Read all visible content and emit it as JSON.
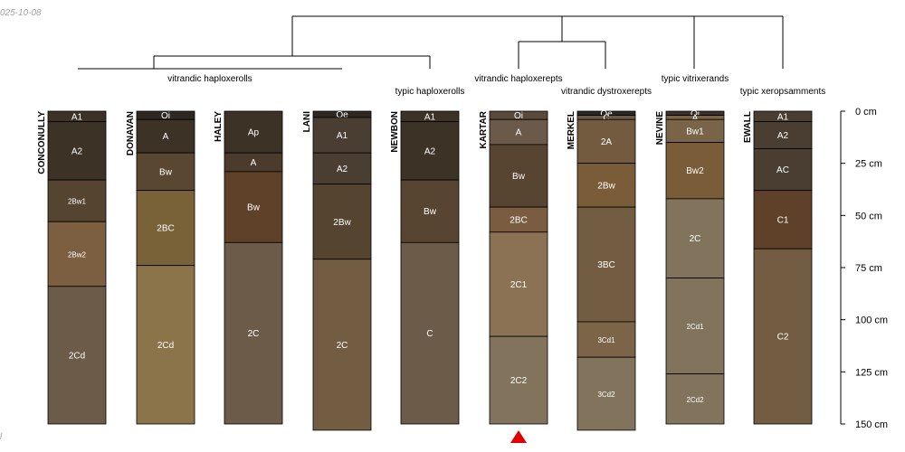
{
  "header": {
    "date_text": "025-10-08",
    "corner_mark": "l"
  },
  "colors": {
    "line": "#000000",
    "marker": "#e00000",
    "label_light": "#ffffff"
  },
  "depth_axis": {
    "max_depth": 150,
    "ticks": [
      {
        "value": 0,
        "label": "0 cm"
      },
      {
        "value": 25,
        "label": "25 cm"
      },
      {
        "value": 50,
        "label": "50 cm"
      },
      {
        "value": 75,
        "label": "75 cm"
      },
      {
        "value": 100,
        "label": "100 cm"
      },
      {
        "value": 125,
        "label": "125 cm"
      },
      {
        "value": 150,
        "label": "150 cm"
      }
    ]
  },
  "taxa_labels": [
    "vitrandic haploxerolls",
    "typic haploxerolls",
    "vitrandic haploxerepts",
    "vitrandic dystroxerepts",
    "typic vitrixerands",
    "typic xeropsamments"
  ],
  "marker": {
    "profile": "KARTAR",
    "shape": "triangle"
  },
  "profiles": [
    {
      "name": "CONCONULLY",
      "horizons": [
        {
          "name": "A1",
          "top": 0,
          "bottom": 5,
          "color": "#3d3226"
        },
        {
          "name": "A2",
          "top": 5,
          "bottom": 33,
          "color": "#3d3226"
        },
        {
          "name": "2Bw1",
          "top": 33,
          "bottom": 53,
          "color": "#55442f"
        },
        {
          "name": "2Bw2",
          "top": 53,
          "bottom": 84,
          "color": "#7b5f40"
        },
        {
          "name": "2Cd",
          "top": 84,
          "bottom": 150,
          "color": "#6b5b48"
        }
      ]
    },
    {
      "name": "DONAVAN",
      "horizons": [
        {
          "name": "Oi",
          "top": 0,
          "bottom": 4,
          "color": "#2e2820"
        },
        {
          "name": "A",
          "top": 4,
          "bottom": 20,
          "color": "#3d3226"
        },
        {
          "name": "Bw",
          "top": 20,
          "bottom": 38,
          "color": "#5a4731"
        },
        {
          "name": "2BC",
          "top": 38,
          "bottom": 74,
          "color": "#7a6238"
        },
        {
          "name": "2Cd",
          "top": 74,
          "bottom": 150,
          "color": "#8b7449"
        }
      ]
    },
    {
      "name": "HALEY",
      "horizons": [
        {
          "name": "Ap",
          "top": 0,
          "bottom": 20,
          "color": "#3d3226"
        },
        {
          "name": "A",
          "top": 20,
          "bottom": 29,
          "color": "#4a3b2c"
        },
        {
          "name": "Bw",
          "top": 29,
          "bottom": 63,
          "color": "#5e4128"
        },
        {
          "name": "2C",
          "top": 63,
          "bottom": 150,
          "color": "#6b5b48"
        }
      ]
    },
    {
      "name": "LANI",
      "horizons": [
        {
          "name": "Oe",
          "top": 0,
          "bottom": 3,
          "color": "#2e2820"
        },
        {
          "name": "A1",
          "top": 3,
          "bottom": 20,
          "color": "#4a3e32"
        },
        {
          "name": "A2",
          "top": 20,
          "bottom": 35,
          "color": "#4a3e32"
        },
        {
          "name": "2Bw",
          "top": 35,
          "bottom": 71,
          "color": "#554530"
        },
        {
          "name": "2C",
          "top": 71,
          "bottom": 153,
          "color": "#735d42"
        }
      ]
    },
    {
      "name": "NEWBON",
      "horizons": [
        {
          "name": "A1",
          "top": 0,
          "bottom": 5,
          "color": "#3d3226"
        },
        {
          "name": "A2",
          "top": 5,
          "bottom": 33,
          "color": "#3d3226"
        },
        {
          "name": "Bw",
          "top": 33,
          "bottom": 63,
          "color": "#574532"
        },
        {
          "name": "C",
          "top": 63,
          "bottom": 150,
          "color": "#6b5b48"
        }
      ]
    },
    {
      "name": "KARTAR",
      "horizons": [
        {
          "name": "Oi",
          "top": 0,
          "bottom": 4,
          "color": "#5a4a3c"
        },
        {
          "name": "A",
          "top": 4,
          "bottom": 16,
          "color": "#6b5a4a"
        },
        {
          "name": "Bw",
          "top": 16,
          "bottom": 46,
          "color": "#574532"
        },
        {
          "name": "2BC",
          "top": 46,
          "bottom": 58,
          "color": "#7a5c40"
        },
        {
          "name": "2C1",
          "top": 58,
          "bottom": 108,
          "color": "#8c7254"
        },
        {
          "name": "2C2",
          "top": 108,
          "bottom": 150,
          "color": "#82735c"
        }
      ]
    },
    {
      "name": "MERKEL",
      "horizons": [
        {
          "name": "Oe",
          "top": 0,
          "bottom": 2,
          "color": "#2e2820"
        },
        {
          "name": "C",
          "top": 2,
          "bottom": 4,
          "color": "#6b5a4a"
        },
        {
          "name": "2A",
          "top": 4,
          "bottom": 25,
          "color": "#735b40"
        },
        {
          "name": "2Bw",
          "top": 25,
          "bottom": 46,
          "color": "#7b5c38"
        },
        {
          "name": "3BC",
          "top": 46,
          "bottom": 101,
          "color": "#735d42"
        },
        {
          "name": "3Cd1",
          "top": 101,
          "bottom": 118,
          "color": "#7b6448"
        },
        {
          "name": "3Cd2",
          "top": 118,
          "bottom": 153,
          "color": "#82735c"
        }
      ]
    },
    {
      "name": "NEVINE",
      "horizons": [
        {
          "name": "Oi",
          "top": 0,
          "bottom": 2,
          "color": "#3d3226"
        },
        {
          "name": "A",
          "top": 2,
          "bottom": 4,
          "color": "#7a6448"
        },
        {
          "name": "Bw1",
          "top": 4,
          "bottom": 15,
          "color": "#7a6448"
        },
        {
          "name": "Bw2",
          "top": 15,
          "bottom": 42,
          "color": "#7b5c38"
        },
        {
          "name": "2C",
          "top": 42,
          "bottom": 80,
          "color": "#82735c"
        },
        {
          "name": "2Cd1",
          "top": 80,
          "bottom": 126,
          "color": "#82735c"
        },
        {
          "name": "2Cd2",
          "top": 126,
          "bottom": 150,
          "color": "#82735c"
        }
      ]
    },
    {
      "name": "EWALL",
      "horizons": [
        {
          "name": "A1",
          "top": 0,
          "bottom": 5,
          "color": "#4a3e32"
        },
        {
          "name": "A2",
          "top": 5,
          "bottom": 18,
          "color": "#4a3e32"
        },
        {
          "name": "AC",
          "top": 18,
          "bottom": 38,
          "color": "#4a3e32"
        },
        {
          "name": "C1",
          "top": 38,
          "bottom": 66,
          "color": "#5e4128"
        },
        {
          "name": "C2",
          "top": 66,
          "bottom": 150,
          "color": "#735d42"
        }
      ]
    }
  ]
}
